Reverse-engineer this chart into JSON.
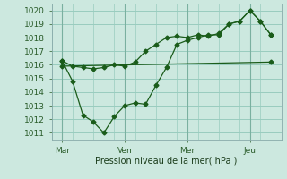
{
  "background_color": "#cce8df",
  "plot_bg_color": "#cce8df",
  "grid_color": "#99ccbf",
  "line_color": "#1a5c1a",
  "marker_color": "#1a5c1a",
  "xlabel": "Pression niveau de la mer( hPa )",
  "ylim": [
    1010.5,
    1020.5
  ],
  "yticks": [
    1011,
    1012,
    1013,
    1014,
    1015,
    1016,
    1017,
    1018,
    1019,
    1020
  ],
  "day_labels": [
    "Mar",
    "Ven",
    "Mer",
    "Jeu"
  ],
  "day_positions": [
    0,
    24,
    48,
    72
  ],
  "xlim": [
    -4,
    84
  ],
  "series1_x": [
    0,
    4,
    8,
    12,
    16,
    20,
    24,
    28,
    32,
    36,
    40,
    44,
    48,
    52,
    56,
    60,
    64,
    68,
    72,
    76,
    80
  ],
  "series1_y": [
    1016.3,
    1015.9,
    1015.8,
    1015.7,
    1015.8,
    1016.0,
    1015.9,
    1016.2,
    1017.0,
    1017.5,
    1018.0,
    1018.1,
    1018.0,
    1018.2,
    1018.1,
    1018.3,
    1019.0,
    1019.2,
    1020.0,
    1019.2,
    1018.2
  ],
  "series2_x": [
    0,
    4,
    8,
    12,
    16,
    20,
    24,
    28,
    32,
    36,
    40,
    44,
    48,
    52,
    56,
    60,
    64,
    68,
    72,
    76,
    80
  ],
  "series2_y": [
    1016.3,
    1014.8,
    1012.3,
    1011.8,
    1011.0,
    1012.2,
    1013.0,
    1013.2,
    1013.1,
    1014.5,
    1015.8,
    1017.5,
    1017.8,
    1018.0,
    1018.2,
    1018.2,
    1019.0,
    1019.2,
    1020.0,
    1019.2,
    1018.2
  ],
  "series3_x": [
    0,
    80
  ],
  "series3_y": [
    1015.9,
    1016.2
  ]
}
